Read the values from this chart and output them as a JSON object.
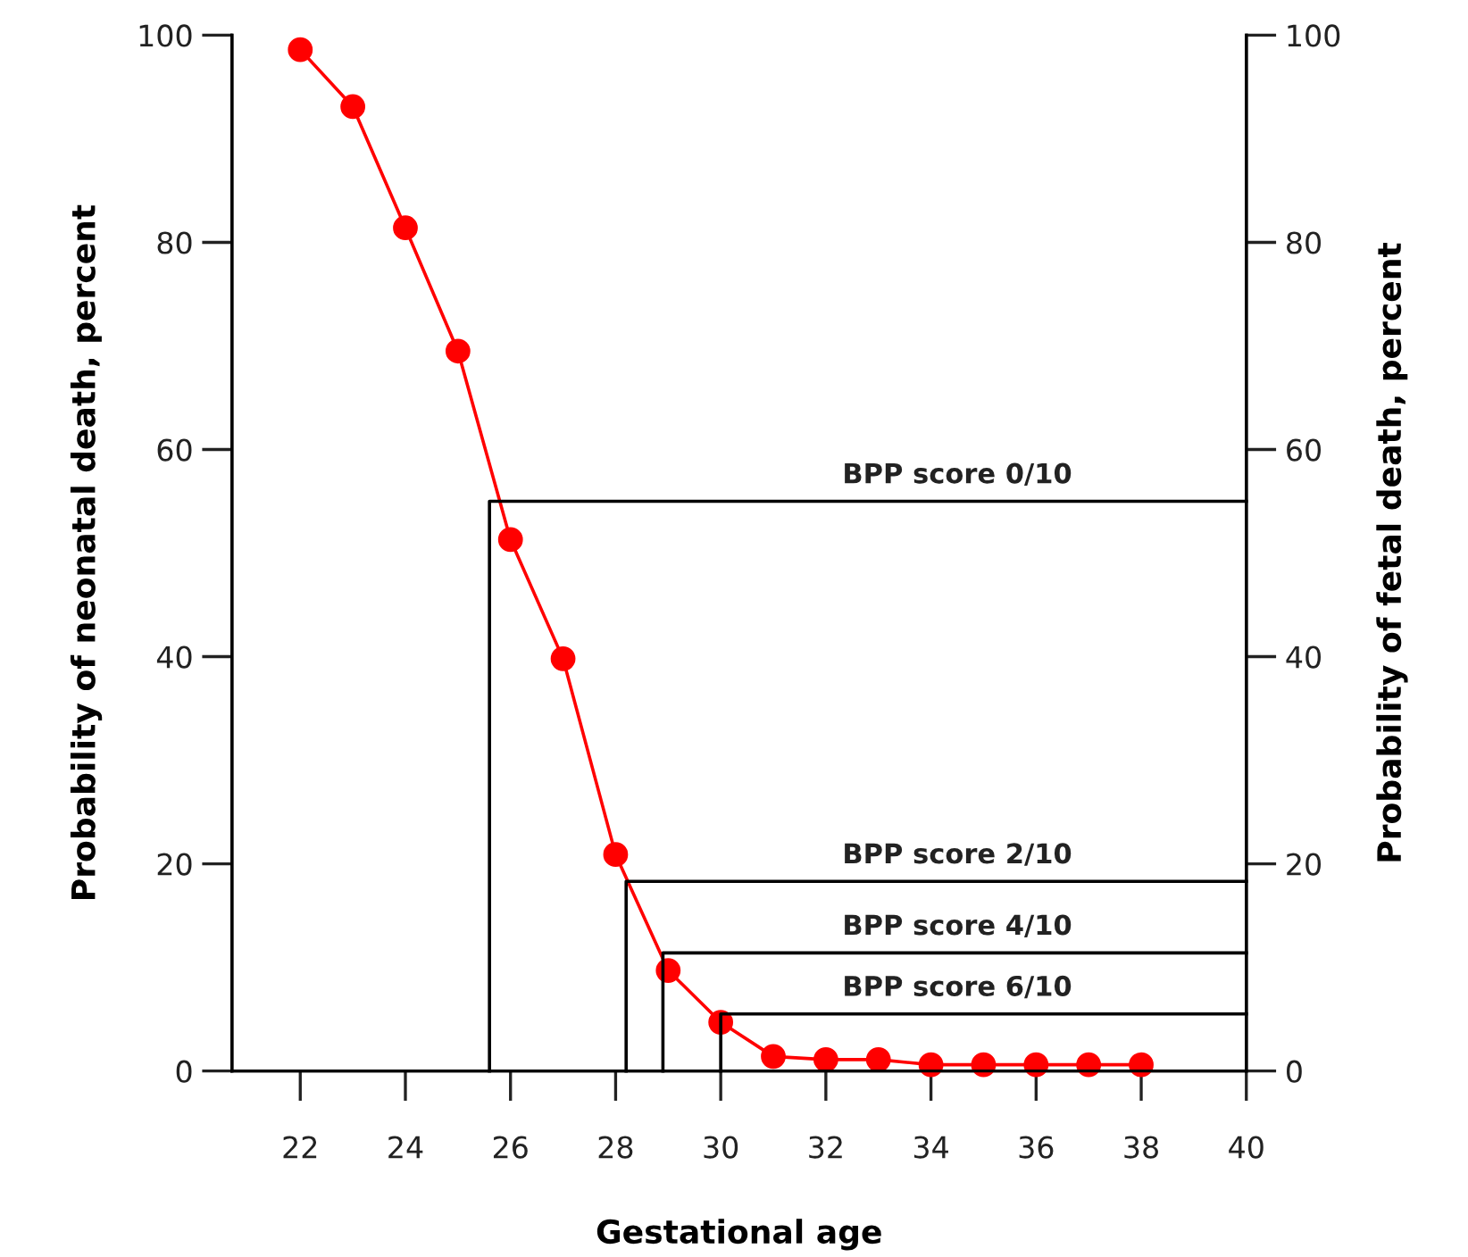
{
  "chart_data": {
    "type": "line",
    "xlabel": "Gestational age",
    "ylabel": "Probability of neonatal death, percent",
    "y2label": "Probability of fetal death, percent",
    "xlim": [
      20.7,
      40
    ],
    "xticks": [
      22,
      24,
      26,
      28,
      30,
      32,
      34,
      36,
      38,
      40
    ],
    "ylim": [
      0,
      100
    ],
    "yticks": [
      0,
      20,
      40,
      60,
      80,
      100
    ],
    "y2lim": [
      0,
      100
    ],
    "y2ticks": [
      0,
      20,
      40,
      60,
      80,
      100
    ],
    "grid": false,
    "legend": false,
    "series": [
      {
        "color": "#ff0000",
        "marker": "circle",
        "line_style": "solid",
        "x": [
          22,
          23,
          24,
          25,
          26,
          27,
          28,
          29,
          30,
          31,
          32,
          33,
          34,
          35,
          36,
          37,
          38
        ],
        "values": [
          98.6,
          93.1,
          81.4,
          69.5,
          51.3,
          39.8,
          20.9,
          9.7,
          4.7,
          1.4,
          1.1,
          1.1,
          0.6,
          0.6,
          0.6,
          0.6,
          0.6
        ]
      },
      {
        "name": "BPP score 0/10",
        "color": "#000000",
        "marker": "none",
        "line_style": "solid",
        "x": [
          25.6,
          25.6,
          40
        ],
        "values": [
          0,
          55,
          55
        ]
      },
      {
        "name": "BPP score 2/10",
        "color": "#000000",
        "marker": "none",
        "line_style": "solid",
        "x": [
          28.2,
          28.2,
          40
        ],
        "values": [
          0,
          18.3,
          18.3
        ]
      },
      {
        "name": "BPP score 4/10",
        "color": "#000000",
        "marker": "none",
        "line_style": "solid",
        "x": [
          28.9,
          28.9,
          40
        ],
        "values": [
          0,
          11.4,
          11.4
        ]
      },
      {
        "name": "BPP score 6/10",
        "color": "#000000",
        "marker": "none",
        "line_style": "solid",
        "x": [
          30.0,
          30.0,
          40
        ],
        "values": [
          0,
          5.5,
          5.5
        ]
      }
    ]
  }
}
